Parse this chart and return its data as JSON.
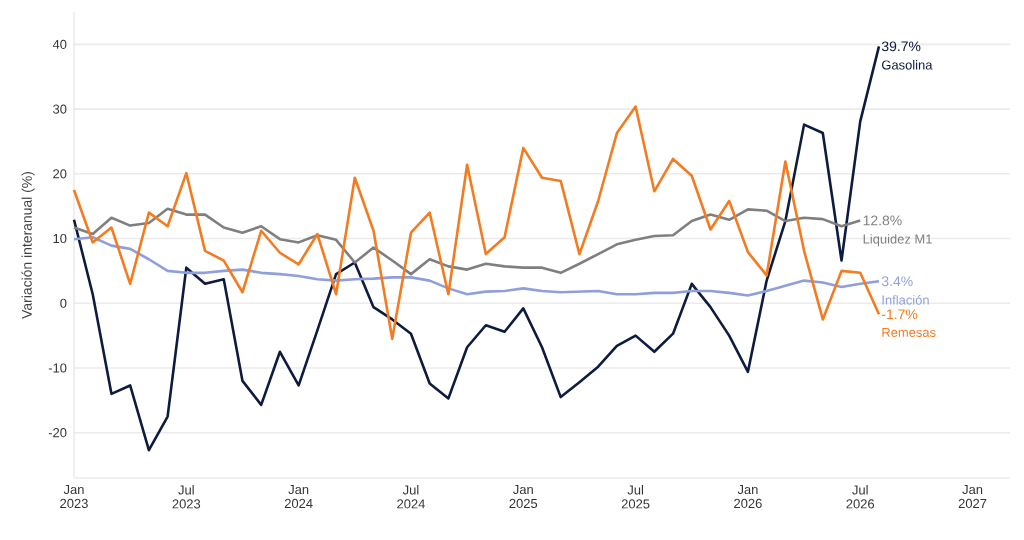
{
  "chart_data": {
    "type": "line",
    "ylabel": "Variación interanual (%)",
    "x": [
      "2023-01",
      "2023-02",
      "2023-03",
      "2023-04",
      "2023-05",
      "2023-06",
      "2023-07",
      "2023-08",
      "2023-09",
      "2023-10",
      "2023-11",
      "2023-12",
      "2024-01",
      "2024-02",
      "2024-03",
      "2024-04",
      "2024-05",
      "2024-06",
      "2024-07",
      "2024-08",
      "2024-09",
      "2024-10",
      "2024-11",
      "2024-12",
      "2025-01",
      "2025-02",
      "2025-03",
      "2025-04",
      "2025-05",
      "2025-06",
      "2025-07",
      "2025-08",
      "2025-09",
      "2025-10",
      "2025-11",
      "2025-12",
      "2026-01",
      "2026-02",
      "2026-03",
      "2026-04",
      "2026-05",
      "2026-06",
      "2026-07",
      "2026-08"
    ],
    "series": [
      {
        "name": "Gasolina",
        "color": "#0d1b3e",
        "values": [
          12.9,
          1.4,
          -14,
          -12.7,
          -22.7,
          -17.5,
          5.5,
          3,
          3.7,
          -12,
          -15.7,
          -7.5,
          -12.7,
          -4.2,
          4.5,
          6.3,
          -0.6,
          -2.5,
          -4.7,
          -12.4,
          -14.7,
          -6.8,
          -3.4,
          -4.4,
          -0.8,
          -6.8,
          -14.5,
          -12.2,
          -9.8,
          -6.6,
          -5,
          -7.5,
          -4.7,
          3,
          -0.6,
          -5,
          -10.6,
          3.5,
          12.7,
          27.6,
          26.3,
          6.6,
          28.1,
          39.7
        ]
      },
      {
        "name": "Liquidez M1",
        "color": "#7f7f7f",
        "values": [
          11.7,
          10.7,
          13.2,
          12,
          12.4,
          14.6,
          13.7,
          13.7,
          11.7,
          10.9,
          11.9,
          9.9,
          9.4,
          10.5,
          9.8,
          6.3,
          8.6,
          6.6,
          4.5,
          6.8,
          5.7,
          5.2,
          6.1,
          5.7,
          5.5,
          5.5,
          4.7,
          6.1,
          7.6,
          9.1,
          9.8,
          10.4,
          10.5,
          12.7,
          13.7,
          12.9,
          14.5,
          14.3,
          12.7,
          13.2,
          13,
          11.9,
          12.8,
          null
        ]
      },
      {
        "name": "Inflación",
        "color": "#8f9fdc",
        "values": [
          9.9,
          10.2,
          8.9,
          8.4,
          6.8,
          5,
          4.7,
          4.7,
          5,
          5.2,
          4.7,
          4.5,
          4.2,
          3.7,
          3.5,
          3.7,
          3.8,
          4,
          4,
          3.5,
          2.3,
          1.4,
          1.8,
          1.9,
          2.3,
          1.9,
          1.7,
          1.8,
          1.9,
          1.4,
          1.4,
          1.6,
          1.6,
          1.9,
          1.9,
          1.6,
          1.2,
          1.9,
          2.7,
          3.5,
          3.2,
          2.5,
          3,
          3.4
        ]
      },
      {
        "name": "Remesas",
        "color": "#f47b20",
        "values": [
          17.5,
          9.4,
          11.7,
          3,
          14,
          11.9,
          20.1,
          8.1,
          6.6,
          1.7,
          11.2,
          7.8,
          6,
          10.7,
          1.4,
          19.4,
          11.2,
          -5.5,
          10.9,
          14,
          1.4,
          21.4,
          7.6,
          10.2,
          24,
          19.4,
          18.9,
          7.6,
          15.8,
          26.3,
          30.4,
          17.3,
          22.3,
          19.7,
          11.4,
          15.8,
          7.9,
          4.3,
          21.9,
          8.1,
          -2.5,
          5,
          4.7,
          -1.7
        ]
      }
    ],
    "annotations": [
      {
        "text": "39.7%",
        "x": "2026-08",
        "y": 39.7
      },
      {
        "text": "12.8%",
        "x": "2026-07",
        "y": 12.8
      },
      {
        "text": "3.4%",
        "x": "2026-08",
        "y": 3.4
      },
      {
        "text": "-1.7%",
        "x": "2026-08",
        "y": -1.7
      }
    ],
    "xlim": [
      "2023-01",
      "2027-03"
    ],
    "xticks": [
      {
        "value": "2023-01",
        "label": "Jan 2023"
      },
      {
        "value": "2023-07",
        "label": "Jul 2023"
      },
      {
        "value": "2024-01",
        "label": "Jan 2024"
      },
      {
        "value": "2024-07",
        "label": "Jul 2024"
      },
      {
        "value": "2025-01",
        "label": "Jan 2025"
      },
      {
        "value": "2025-07",
        "label": "Jul 2025"
      },
      {
        "value": "2026-01",
        "label": "Jan 2026"
      },
      {
        "value": "2026-07",
        "label": "Jul 2026"
      },
      {
        "value": "2027-01",
        "label": "Jan 2027"
      }
    ],
    "ylim": [
      -27,
      45
    ],
    "yticks": [
      -20,
      -10,
      0,
      10,
      20,
      30,
      40
    ],
    "grid": "y",
    "legend": false,
    "marker": "none",
    "line_style": "solid"
  }
}
